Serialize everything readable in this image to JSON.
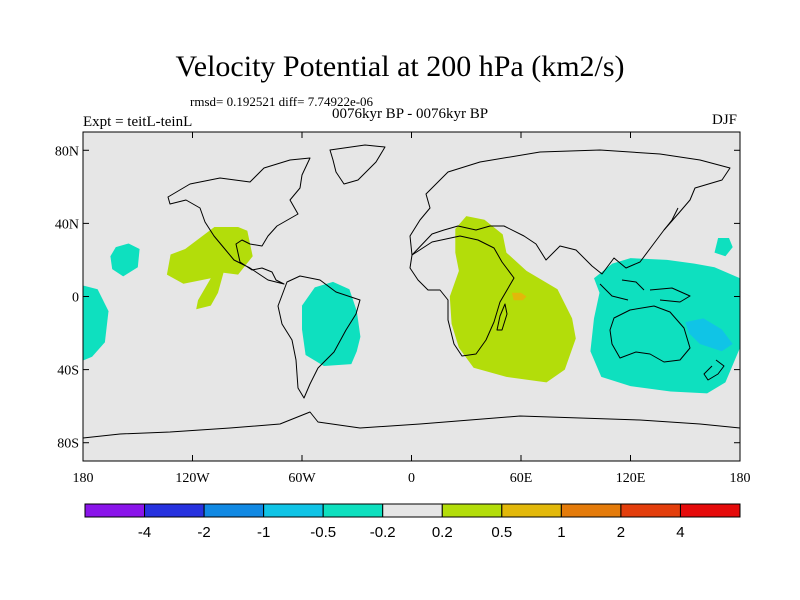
{
  "chart_data": {
    "type": "heatmap",
    "title": "Velocity Potential at 200 hPa (km2/s)",
    "stats_text": "rmsd= 0.192521  diff= 7.74922e-06",
    "period": "0076kyr BP - 0076kyr BP",
    "left_label": "Expt = teitL-teinL",
    "right_label": "DJF",
    "x_ticks": [
      -180,
      -120,
      -60,
      0,
      60,
      120,
      180
    ],
    "x_tick_labels": [
      "180",
      "120W",
      "60W",
      "0",
      "60E",
      "120E",
      "180"
    ],
    "y_ticks": [
      80,
      40,
      0,
      -40,
      -80
    ],
    "y_tick_labels": [
      "80N",
      "40N",
      "0",
      "40S",
      "80S"
    ],
    "xlim": [
      -180,
      180
    ],
    "ylim": [
      -90,
      90
    ],
    "colorbar": {
      "levels": [
        "-4",
        "-2",
        "-1",
        "-0.5",
        "-0.2",
        "0.2",
        "0.5",
        "1",
        "2",
        "4"
      ],
      "colors": [
        "#8a14ea",
        "#2732df",
        "#1189e3",
        "#10c4e6",
        "#0ee0bf",
        "#e6e6e6",
        "#b3dd0a",
        "#e2b80a",
        "#e47b0a",
        "#e33e0c",
        "#e50b0b"
      ]
    },
    "regions": [
      {
        "name": "n-pacific-west",
        "level": "-0.5",
        "color": "#0ee0bf",
        "points": [
          [
            -162,
            27
          ],
          [
            -155,
            29
          ],
          [
            -149,
            26
          ],
          [
            -150,
            16
          ],
          [
            -158,
            11
          ],
          [
            -164,
            15
          ],
          [
            -165,
            22
          ]
        ]
      },
      {
        "name": "e-pacific-south",
        "level": "-0.5",
        "color": "#0ee0bf",
        "points": [
          [
            -180,
            6
          ],
          [
            -172,
            4
          ],
          [
            -166,
            -8
          ],
          [
            -168,
            -25
          ],
          [
            -175,
            -33
          ],
          [
            -180,
            -35
          ]
        ]
      },
      {
        "name": "central-america",
        "level": "0.5",
        "color": "#b3dd0a",
        "points": [
          [
            -124,
            26
          ],
          [
            -108,
            38
          ],
          [
            -95,
            38
          ],
          [
            -90,
            36
          ],
          [
            -87,
            22
          ],
          [
            -95,
            12
          ],
          [
            -103,
            13
          ],
          [
            -106,
            2
          ],
          [
            -110,
            -5
          ],
          [
            -118,
            -7
          ],
          [
            -117,
            -2
          ],
          [
            -110,
            10
          ],
          [
            -125,
            7
          ],
          [
            -134,
            12
          ],
          [
            -132,
            23
          ]
        ]
      },
      {
        "name": "south-america",
        "level": "-0.5",
        "color": "#0ee0bf",
        "points": [
          [
            -53,
            5
          ],
          [
            -43,
            8
          ],
          [
            -34,
            4
          ],
          [
            -30,
            -8
          ],
          [
            -28,
            -22
          ],
          [
            -30,
            -30
          ],
          [
            -33,
            -37
          ],
          [
            -48,
            -38
          ],
          [
            -58,
            -32
          ],
          [
            -60,
            -18
          ],
          [
            -60,
            -5
          ]
        ]
      },
      {
        "name": "africa-asia",
        "level": "0.5",
        "color": "#b3dd0a",
        "points": [
          [
            24,
            37
          ],
          [
            30,
            44
          ],
          [
            40,
            42
          ],
          [
            50,
            34
          ],
          [
            52,
            24
          ],
          [
            63,
            14
          ],
          [
            80,
            4
          ],
          [
            88,
            -12
          ],
          [
            90,
            -23
          ],
          [
            84,
            -40
          ],
          [
            74,
            -47
          ],
          [
            52,
            -44
          ],
          [
            34,
            -39
          ],
          [
            26,
            -28
          ],
          [
            22,
            -15
          ],
          [
            21,
            0
          ],
          [
            26,
            14
          ],
          [
            24,
            24
          ]
        ]
      },
      {
        "name": "east-africa-peak",
        "level": "1",
        "color": "#e2b80a",
        "points": [
          [
            55,
            2
          ],
          [
            60,
            2
          ],
          [
            63,
            0
          ],
          [
            61,
            -2
          ],
          [
            56,
            -2
          ]
        ]
      },
      {
        "name": "w-pacific",
        "level": "-0.5",
        "color": "#0ee0bf",
        "points": [
          [
            100,
            10
          ],
          [
            110,
            18
          ],
          [
            120,
            21
          ],
          [
            140,
            20
          ],
          [
            155,
            18
          ],
          [
            166,
            16
          ],
          [
            180,
            10
          ],
          [
            180,
            -28
          ],
          [
            172,
            -47
          ],
          [
            162,
            -53
          ],
          [
            142,
            -52
          ],
          [
            120,
            -49
          ],
          [
            104,
            -44
          ],
          [
            98,
            -30
          ],
          [
            100,
            -12
          ],
          [
            103,
            2
          ]
        ]
      },
      {
        "name": "nw-pacific-blob",
        "level": "-0.5",
        "color": "#0ee0bf",
        "points": [
          [
            168,
            32
          ],
          [
            174,
            32
          ],
          [
            176,
            27
          ],
          [
            172,
            22
          ],
          [
            166,
            24
          ]
        ]
      },
      {
        "name": "sw-pacific-core",
        "level": "-1",
        "color": "#10c4e6",
        "points": [
          [
            150,
            -14
          ],
          [
            160,
            -12
          ],
          [
            170,
            -18
          ],
          [
            176,
            -26
          ],
          [
            170,
            -30
          ],
          [
            158,
            -26
          ],
          [
            152,
            -20
          ]
        ]
      }
    ]
  }
}
